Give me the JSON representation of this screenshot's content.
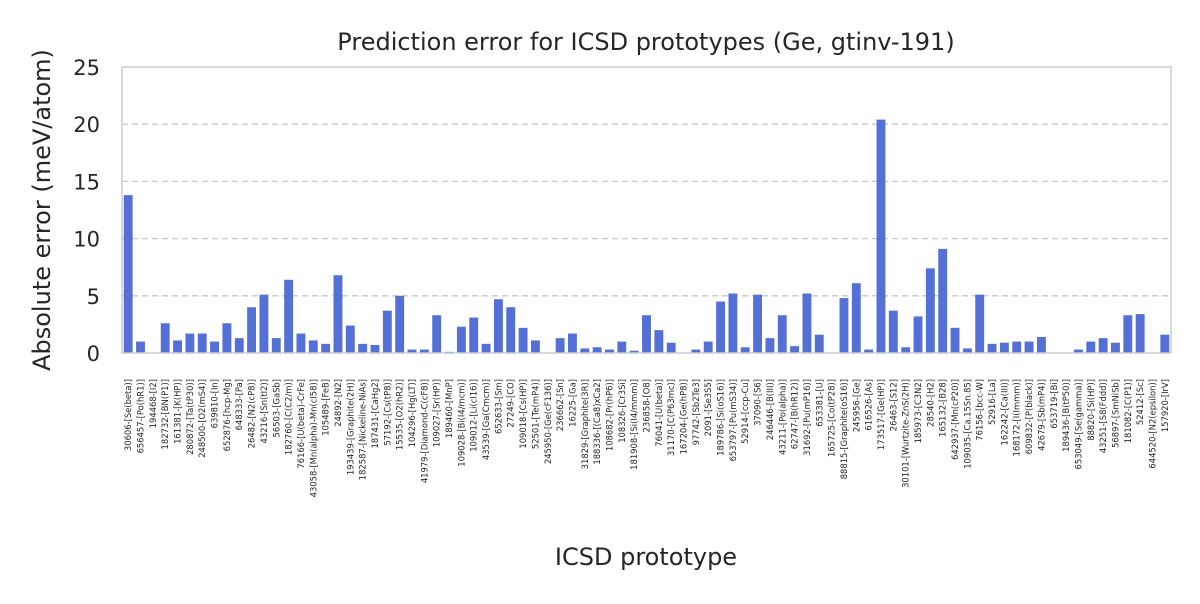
{
  "chart_data": {
    "type": "bar",
    "title": "Prediction error for ICSD prototypes (Ge, gtinv-191)",
    "xlabel": "ICSD prototype",
    "ylabel": "Absolute error (meV/atom)",
    "ylim": [
      0,
      25
    ],
    "yticks": [
      0,
      5,
      10,
      15,
      20,
      25
    ],
    "grid": "horizontal dashed",
    "bar_color": "#5470d6",
    "categories": [
      "30606-[Se(beta)]",
      "656457-[Po(hR1)]",
      "194468-[I2]",
      "182732-[BN(P1)]",
      "161381-[K(HP)]",
      "280872-[Ta(tP30)]",
      "248500-[O2(mS4)]",
      "639810-[In]",
      "652876-[hcp-Mg]",
      "648333-[Pa]",
      "26482-[N2(cP8)]",
      "43216-[Sn(tI2)]",
      "56503-[GaSb]",
      "182760-[C(C2/m)]",
      "76166-[U(beta)-CrFe]",
      "43058-[Mn(alpha)-Mn(cI58)]",
      "105489-[FeB]",
      "24892-[N2]",
      "193439-[Graphite(2H)]",
      "182587-[Nickeline-NiAs]",
      "187431-[CaHg2]",
      "57192-[Cs(tP8)]",
      "15535-[O2(hR2)]",
      "104296-[Hg(LT)]",
      "41979-[Diamond-C(cF8)]",
      "109027-[Sr(HP)]",
      "189460-[MnP]",
      "109028-[Bi(I4/mcm)]",
      "109012-[Li(cI16)]",
      "43539-[Ga(Cmcm)]",
      "652633-[Sm]",
      "27249-[CO]",
      "109018-[Cs(HP)]",
      "52501-[Te(mP4)]",
      "245950-[Ge(cF136)]",
      "236662-[Sn]",
      "16225-[Ga]",
      "31829-[Graphite(3R)]",
      "188336-[(Ca8)xCa2]",
      "108682-[Pr(hP6)]",
      "108326-[Cr3Si]",
      "181908-[Si(I4/mmm)]",
      "236858-[O8]",
      "76041-[U(beta)]",
      "31170-[C(P63mc)]",
      "167204-[Ge(hP8)]",
      "97742-[Sb2Te3]",
      "2091-[Se3S5]",
      "189786-[Si(oS16)]",
      "653797-[Pu(mS34)]",
      "52914-[ccp-Cu]",
      "37090-[S6]",
      "246446-[B(III)]",
      "43211-[Po(alpha)]",
      "62747-[B(hR12)]",
      "31692-[Pu(mP16)]",
      "653381-[U]",
      "165725-[Co(tP28)]",
      "88815-[Graphite(oS16)]",
      "245956-[Ge]",
      "616526-[As]",
      "173517-[Ge(HP)]",
      "26463-[S12]",
      "30101-[Wurtzite-ZnS(2H)]",
      "185973-[C3N2]",
      "28540-[H2]",
      "165132-[B28]",
      "642937-[Mn(cP20)]",
      "109035-[Ca.15Sn.85]",
      "76156-[bcc-W]",
      "52916-[La]",
      "162242-[Ca(III)]",
      "168172-[I(Immm)]",
      "609832-[P(black)]",
      "42679-[Sb(mP4)]",
      "653719-[Bi]",
      "189436-[B(tP50)]",
      "653049-[Se(gamma)]",
      "88820-[Si(HP)]",
      "43251-[S8(Fddd)]",
      "56897-[SmNiSb]",
      "181082-[C(P1)]",
      "52412-[Sc]",
      "644520-[N2(epsilon)]",
      "157920-[IrV]"
    ],
    "values": [
      13.8,
      1.0,
      0.0,
      2.6,
      1.1,
      1.7,
      1.7,
      1.0,
      2.6,
      1.3,
      4.0,
      5.1,
      1.3,
      6.4,
      1.7,
      1.1,
      0.8,
      6.8,
      2.4,
      0.8,
      0.7,
      3.7,
      5.0,
      0.3,
      0.3,
      3.3,
      0.1,
      2.3,
      3.1,
      0.8,
      4.7,
      4.0,
      2.2,
      1.1,
      0.0,
      1.3,
      1.7,
      0.4,
      0.5,
      0.3,
      1.0,
      0.2,
      3.3,
      2.0,
      0.9,
      0.0,
      0.3,
      1.0,
      4.5,
      5.2,
      0.5,
      5.1,
      1.3,
      3.3,
      0.6,
      5.2,
      1.6,
      0.0,
      4.8,
      6.1,
      0.3,
      20.4,
      3.7,
      0.5,
      3.2,
      7.4,
      9.1,
      2.2,
      0.4,
      5.1,
      0.8,
      0.9,
      1.0,
      1.0,
      1.4,
      0.0,
      0.0,
      0.3,
      1.0,
      1.3,
      0.9,
      3.3,
      3.4,
      0.0,
      1.6
    ]
  }
}
